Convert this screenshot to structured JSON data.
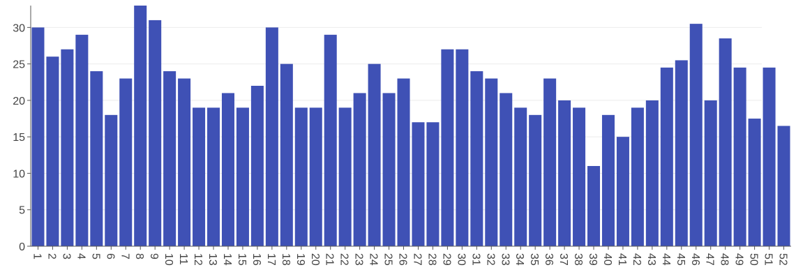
{
  "chart_data": {
    "type": "bar",
    "categories": [
      "1",
      "2",
      "3",
      "4",
      "5",
      "6",
      "7",
      "8",
      "9",
      "10",
      "11",
      "12",
      "13",
      "14",
      "15",
      "16",
      "17",
      "18",
      "19",
      "20",
      "21",
      "22",
      "23",
      "24",
      "25",
      "26",
      "27",
      "28",
      "29",
      "30",
      "31",
      "32",
      "33",
      "34",
      "35",
      "36",
      "37",
      "38",
      "39",
      "40",
      "41",
      "42",
      "43",
      "44",
      "45",
      "46",
      "47",
      "48",
      "49",
      "50",
      "51",
      "52"
    ],
    "values": [
      30,
      26,
      27,
      29,
      24,
      18,
      23,
      33,
      31,
      24,
      23,
      19,
      19,
      21,
      19,
      22,
      30,
      25,
      19,
      19,
      29,
      19,
      21,
      25,
      21,
      23,
      17,
      17,
      27,
      27,
      24,
      23,
      21,
      19,
      18,
      23,
      20,
      19,
      11,
      18,
      15,
      19,
      20,
      24.5,
      25.5,
      30.5,
      20,
      28.5,
      24.5,
      17.5,
      24.5,
      16.5
    ],
    "ylim": [
      0,
      33
    ],
    "yticks": [
      0,
      5,
      10,
      15,
      20,
      25,
      30
    ],
    "grid": true,
    "bar_color": "#3f51b5",
    "title": "",
    "xlabel": "",
    "ylabel": ""
  }
}
